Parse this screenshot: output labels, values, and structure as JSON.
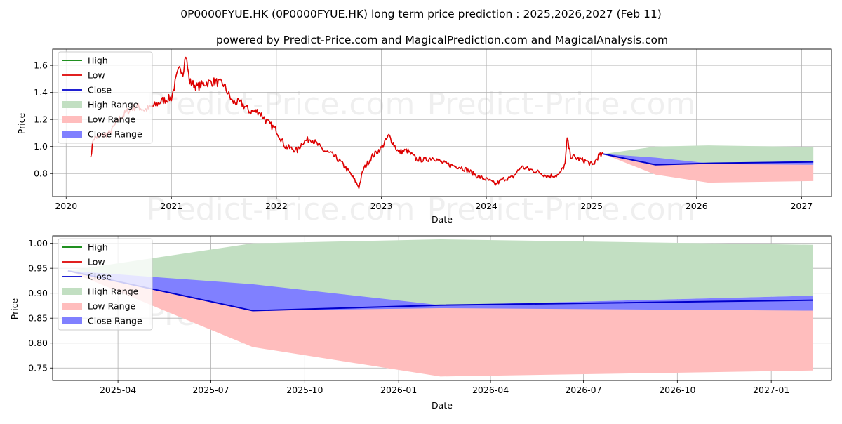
{
  "title": "0P0000FYUE.HK (0P0000FYUE.HK) long term price prediction : 2025,2026,2027 (Feb 11)",
  "subtitle": "powered by Predict-Price.com and MagicalPrediction.com and MagicalAnalysis.com",
  "watermark": "Predict-Price.com",
  "colors": {
    "high": "#008000",
    "low": "#dd0000",
    "close": "#0000cc",
    "high_range": "#c2dfc2",
    "low_range": "#ffbdbd",
    "close_range": "#8080ff",
    "grid": "#b0b0b0"
  },
  "chart_data": [
    {
      "type": "line",
      "xlabel": "Date",
      "ylabel": "Price",
      "xlim": [
        "2019-11-15",
        "2027-04-15"
      ],
      "ylim": [
        0.63,
        1.72
      ],
      "x_ticks": [
        "2020",
        "2021",
        "2022",
        "2023",
        "2024",
        "2025",
        "2026",
        "2027"
      ],
      "x_tick_dates": [
        "2020-01-01",
        "2021-01-01",
        "2022-01-01",
        "2023-01-01",
        "2024-01-01",
        "2025-01-01",
        "2026-01-01",
        "2027-01-01"
      ],
      "y_ticks": [
        "0.8",
        "1.0",
        "1.2",
        "1.4",
        "1.6"
      ],
      "y_tick_values": [
        0.8,
        1.0,
        1.2,
        1.4,
        1.6
      ],
      "grid": true,
      "legend": "top-left",
      "legend_entries": [
        "High",
        "Low",
        "Close",
        "High Range",
        "Low Range",
        "Close Range"
      ],
      "history": {
        "name": "Low",
        "x": [
          "2020-03-26",
          "2020-04-05",
          "2020-05-01",
          "2020-06-01",
          "2020-07-01",
          "2020-08-01",
          "2020-09-01",
          "2020-10-01",
          "2020-11-01",
          "2020-12-01",
          "2021-01-01",
          "2021-01-20",
          "2021-02-01",
          "2021-02-10",
          "2021-02-20",
          "2021-03-05",
          "2021-04-01",
          "2021-05-01",
          "2021-06-01",
          "2021-07-01",
          "2021-08-01",
          "2021-09-01",
          "2021-10-01",
          "2021-11-01",
          "2021-12-01",
          "2022-01-01",
          "2022-02-01",
          "2022-03-15",
          "2022-04-01",
          "2022-05-01",
          "2022-06-15",
          "2022-07-15",
          "2022-08-15",
          "2022-09-15",
          "2022-10-15",
          "2022-10-30",
          "2022-12-01",
          "2023-01-01",
          "2023-01-27",
          "2023-03-01",
          "2023-04-01",
          "2023-05-01",
          "2023-06-01",
          "2023-07-01",
          "2023-08-01",
          "2023-09-01",
          "2023-10-01",
          "2023-11-01",
          "2023-12-01",
          "2024-01-10",
          "2024-02-01",
          "2024-03-01",
          "2024-04-01",
          "2024-05-01",
          "2024-06-01",
          "2024-07-01",
          "2024-08-01",
          "2024-09-10",
          "2024-10-01",
          "2024-10-08",
          "2024-10-20",
          "2024-11-15",
          "2024-12-15",
          "2025-01-05",
          "2025-01-25",
          "2025-02-11"
        ],
        "values": [
          0.92,
          1.06,
          1.08,
          1.1,
          1.2,
          1.26,
          1.3,
          1.27,
          1.3,
          1.34,
          1.36,
          1.52,
          1.59,
          1.55,
          1.68,
          1.48,
          1.44,
          1.47,
          1.48,
          1.46,
          1.33,
          1.32,
          1.26,
          1.26,
          1.18,
          1.12,
          1.0,
          0.97,
          1.03,
          1.06,
          0.97,
          0.94,
          0.88,
          0.8,
          0.7,
          0.83,
          0.93,
          0.99,
          1.08,
          0.96,
          0.97,
          0.91,
          0.9,
          0.92,
          0.88,
          0.86,
          0.85,
          0.82,
          0.78,
          0.75,
          0.72,
          0.76,
          0.77,
          0.85,
          0.83,
          0.81,
          0.78,
          0.79,
          0.87,
          1.06,
          0.93,
          0.91,
          0.89,
          0.86,
          0.93,
          0.94
        ]
      },
      "forecast": {
        "x": [
          "2025-02-11",
          "2025-08-11",
          "2026-02-11",
          "2027-02-11"
        ],
        "close": [
          0.945,
          0.865,
          0.876,
          0.886
        ],
        "high_range": [
          [
            0.945,
            0.945
          ],
          [
            0.87,
            1.0
          ],
          [
            0.876,
            1.008
          ],
          [
            0.895,
            0.997
          ]
        ],
        "low_range": [
          [
            0.945,
            0.945
          ],
          [
            0.792,
            0.865
          ],
          [
            0.733,
            0.876
          ],
          [
            0.745,
            0.865
          ]
        ],
        "close_range": [
          [
            0.945,
            0.945
          ],
          [
            0.865,
            0.918
          ],
          [
            0.87,
            0.876
          ],
          [
            0.865,
            0.895
          ]
        ]
      }
    },
    {
      "type": "area",
      "xlabel": "Date",
      "ylabel": "Price",
      "xlim": [
        "2025-01-27",
        "2027-03-01"
      ],
      "ylim": [
        0.725,
        1.015
      ],
      "x_ticks": [
        "2025-04",
        "2025-07",
        "2025-10",
        "2026-01",
        "2026-04",
        "2026-07",
        "2026-10",
        "2027-01"
      ],
      "x_tick_dates": [
        "2025-04-01",
        "2025-07-01",
        "2025-10-01",
        "2026-01-01",
        "2026-04-01",
        "2026-07-01",
        "2026-10-01",
        "2027-01-01"
      ],
      "y_ticks": [
        "0.75",
        "0.80",
        "0.85",
        "0.90",
        "0.95",
        "1.00"
      ],
      "y_tick_values": [
        0.75,
        0.8,
        0.85,
        0.9,
        0.95,
        1.0
      ],
      "grid": true,
      "legend": "top-left",
      "legend_entries": [
        "High",
        "Low",
        "Close",
        "High Range",
        "Low Range",
        "Close Range"
      ],
      "forecast": {
        "x": [
          "2025-02-11",
          "2025-08-11",
          "2026-02-11",
          "2027-02-11"
        ],
        "close": [
          0.945,
          0.865,
          0.876,
          0.886
        ],
        "high_range": [
          [
            0.945,
            0.945
          ],
          [
            0.87,
            1.0
          ],
          [
            0.876,
            1.008
          ],
          [
            0.895,
            0.997
          ]
        ],
        "low_range": [
          [
            0.945,
            0.945
          ],
          [
            0.792,
            0.865
          ],
          [
            0.733,
            0.876
          ],
          [
            0.745,
            0.865
          ]
        ],
        "close_range": [
          [
            0.945,
            0.945
          ],
          [
            0.865,
            0.918
          ],
          [
            0.87,
            0.876
          ],
          [
            0.865,
            0.895
          ]
        ]
      }
    }
  ]
}
